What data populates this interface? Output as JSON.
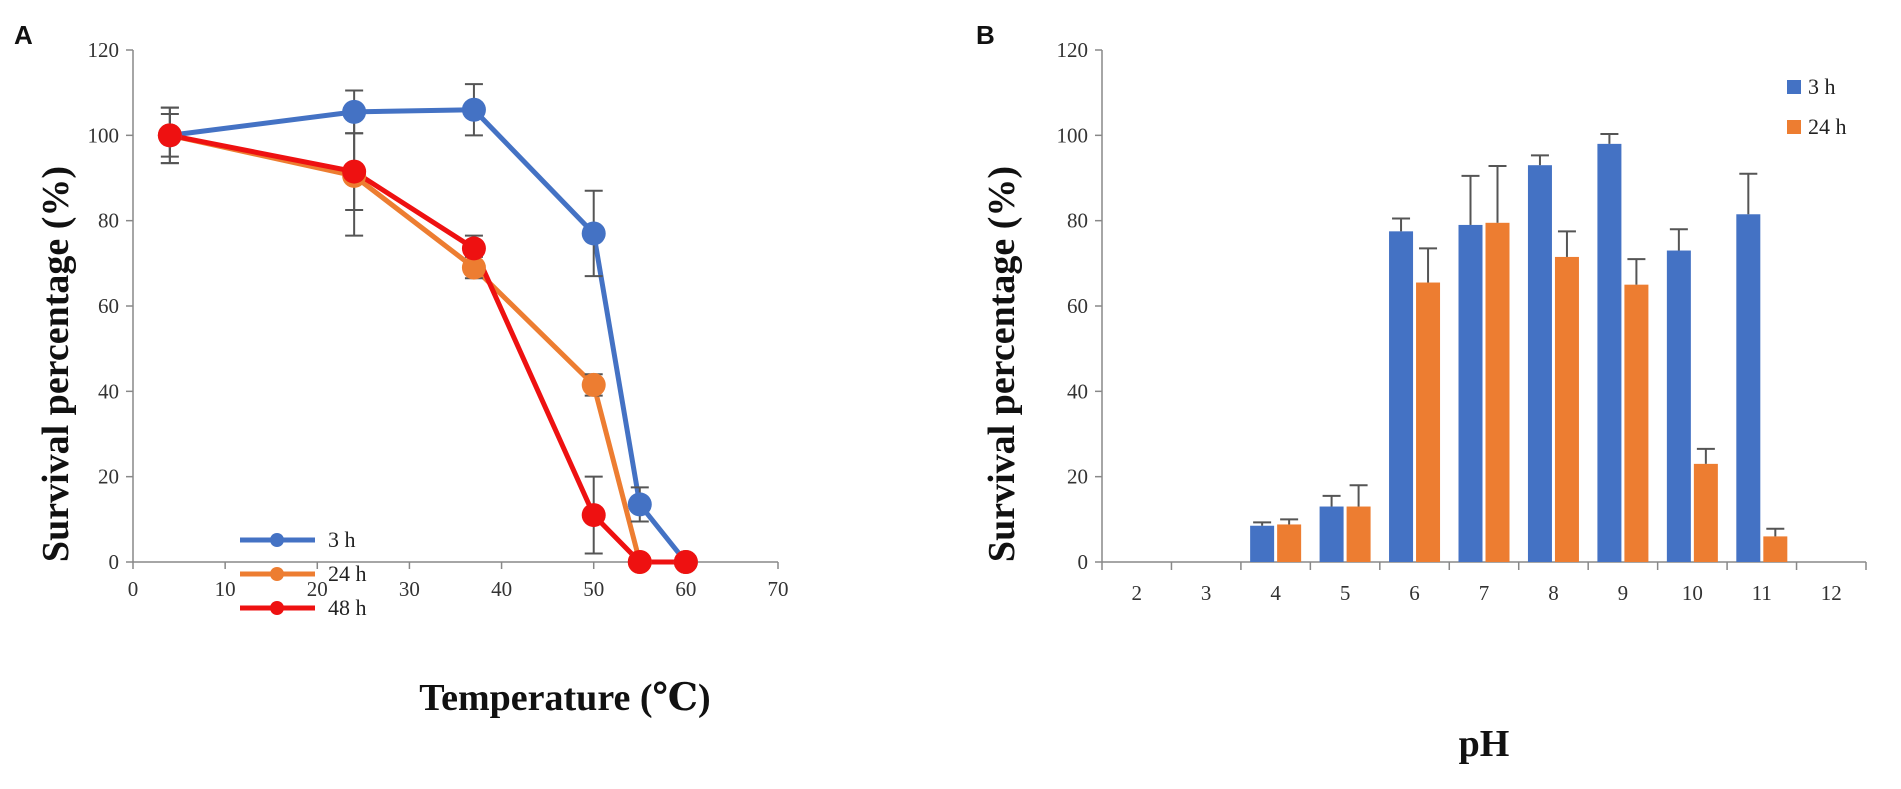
{
  "chart_data": [
    {
      "panel": "A",
      "type": "line",
      "xlabel": "Temperature (℃)",
      "ylabel": "Survival percentage (%)",
      "xlim": [
        0,
        70
      ],
      "ylim": [
        0,
        120
      ],
      "xticks": [
        0,
        10,
        20,
        30,
        40,
        50,
        60,
        70
      ],
      "yticks": [
        0,
        20,
        40,
        60,
        80,
        100,
        120
      ],
      "grid": false,
      "legend_position": "bottom-left",
      "series": [
        {
          "name": "3 h",
          "color": "#4472C4",
          "x": [
            4,
            24,
            37,
            50,
            55,
            60
          ],
          "values": [
            100,
            105.5,
            106,
            77,
            13.5,
            0
          ],
          "errors": [
            6.5,
            5,
            6,
            10,
            4,
            0
          ]
        },
        {
          "name": "24 h",
          "color": "#ED7D31",
          "x": [
            4,
            24,
            37,
            50,
            55,
            60
          ],
          "values": [
            100,
            90.5,
            69,
            41.5,
            0,
            0
          ],
          "errors": [
            5,
            14,
            2.5,
            2.5,
            0,
            0
          ]
        },
        {
          "name": "48 h",
          "color": "#EE1111",
          "x": [
            4,
            24,
            37,
            50,
            55,
            60
          ],
          "values": [
            100,
            91.5,
            73.5,
            11,
            0,
            0
          ],
          "errors": [
            6.5,
            9,
            3,
            9,
            0,
            0
          ]
        }
      ]
    },
    {
      "panel": "B",
      "type": "bar",
      "xlabel": "pH",
      "ylabel": "Survival percentage (%)",
      "categories": [
        "2",
        "3",
        "4",
        "5",
        "6",
        "7",
        "8",
        "9",
        "10",
        "11",
        "12"
      ],
      "ylim": [
        0,
        120
      ],
      "yticks": [
        0,
        20,
        40,
        60,
        80,
        100,
        120
      ],
      "grid": false,
      "legend_position": "top-right",
      "series": [
        {
          "name": "3 h",
          "color": "#4472C4",
          "values": [
            0,
            0,
            8.5,
            13,
            77.5,
            79,
            93,
            98,
            73,
            81.5,
            0
          ],
          "errors": [
            0,
            0,
            0.8,
            2.5,
            3,
            11.5,
            2.3,
            2.3,
            5,
            9.5,
            0
          ]
        },
        {
          "name": "24 h",
          "color": "#ED7D31",
          "values": [
            0,
            0,
            8.8,
            13,
            65.5,
            79.5,
            71.5,
            65,
            23,
            6,
            0
          ],
          "errors": [
            0,
            0,
            1.2,
            5,
            8,
            13.3,
            6,
            6,
            3.5,
            1.8,
            0
          ]
        }
      ]
    }
  ]
}
